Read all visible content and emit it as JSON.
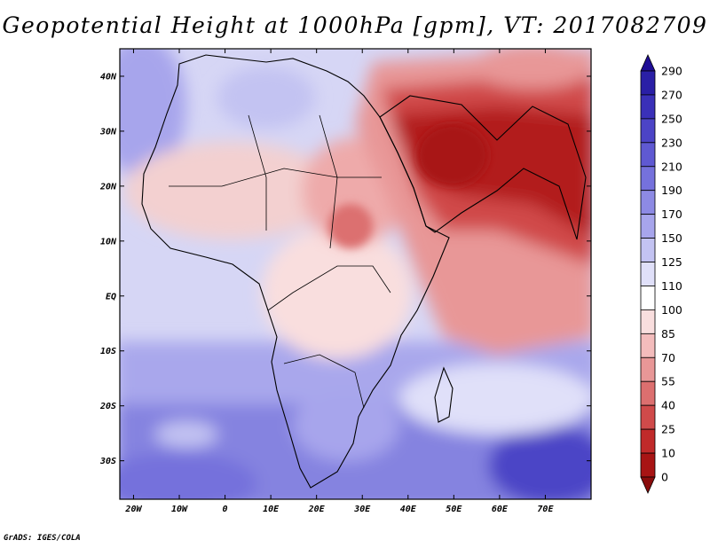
{
  "title": "Geopotential Height at 1000hPa [gpm], VT: 2017082709",
  "credit": "GrADS: IGES/COLA",
  "map": {
    "lon_ticks": [
      "20W",
      "10W",
      "0",
      "10E",
      "20E",
      "30E",
      "40E",
      "50E",
      "60E",
      "70E"
    ],
    "lat_ticks": [
      "40N",
      "30N",
      "20N",
      "10N",
      "EQ",
      "10S",
      "20S",
      "30S"
    ],
    "lon_range": [
      -23,
      80
    ],
    "lat_range": [
      -37,
      45
    ]
  },
  "colorbar": {
    "levels": [
      "290",
      "270",
      "250",
      "230",
      "210",
      "190",
      "170",
      "150",
      "125",
      "110",
      "100",
      "85",
      "70",
      "55",
      "40",
      "25",
      "10",
      "0"
    ],
    "colors": [
      "#1f0d96",
      "#2a1fa6",
      "#3a30b8",
      "#4c44c6",
      "#5f59d2",
      "#7571dc",
      "#8d8ae4",
      "#a7a5ec",
      "#c3c3f2",
      "#e0e0f9",
      "#ffffff",
      "#f9dede",
      "#f3bcbc",
      "#e89797",
      "#dc6f6f",
      "#d04a4a",
      "#c02a2a",
      "#a81414",
      "#8a0c0c"
    ]
  }
}
